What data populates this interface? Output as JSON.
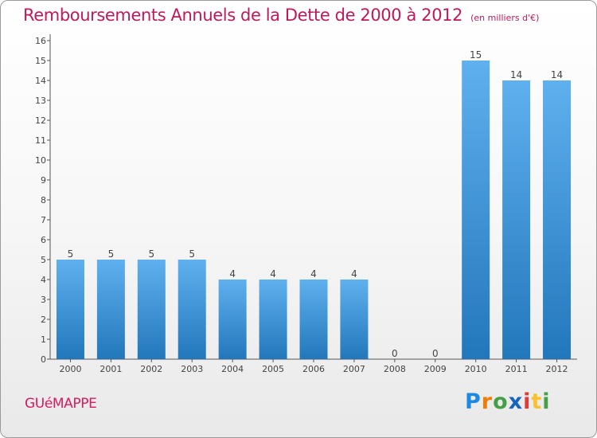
{
  "title": "Remboursements Annuels de la Dette de 2000 à 2012",
  "subtitle": "(en milliers d'€)",
  "commune": "GUéMAPPE",
  "brand": {
    "letters": [
      "P",
      "r",
      "o",
      "x",
      "i",
      "t",
      "i"
    ],
    "colors": [
      "#1e88e5",
      "#f57c00",
      "#43a047",
      "#1565c0",
      "#e53935",
      "#fbc02d",
      "#43a047"
    ]
  },
  "colors": {
    "bar_light": "#5fb0ee",
    "bar_dark": "#2277bb",
    "accent": "#c2185b"
  },
  "chart_data": {
    "type": "bar",
    "title": "Remboursements Annuels de la Dette de 2000 à 2012",
    "xlabel": "",
    "ylabel": "",
    "categories": [
      "2000",
      "2001",
      "2002",
      "2003",
      "2004",
      "2005",
      "2006",
      "2007",
      "2008",
      "2009",
      "2010",
      "2011",
      "2012"
    ],
    "values": [
      5,
      5,
      5,
      5,
      4,
      4,
      4,
      4,
      0,
      0,
      15,
      14,
      14
    ],
    "value_labels": [
      "5",
      "5",
      "5",
      "5",
      "4",
      "4",
      "4",
      "4",
      "0",
      "0",
      "15",
      "14",
      "14"
    ],
    "ylim": [
      0,
      16
    ],
    "yticks": [
      "0",
      "1",
      "2",
      "3",
      "4",
      "5",
      "6",
      "7",
      "8",
      "9",
      "10",
      "11",
      "12",
      "13",
      "14",
      "15",
      "16"
    ]
  }
}
